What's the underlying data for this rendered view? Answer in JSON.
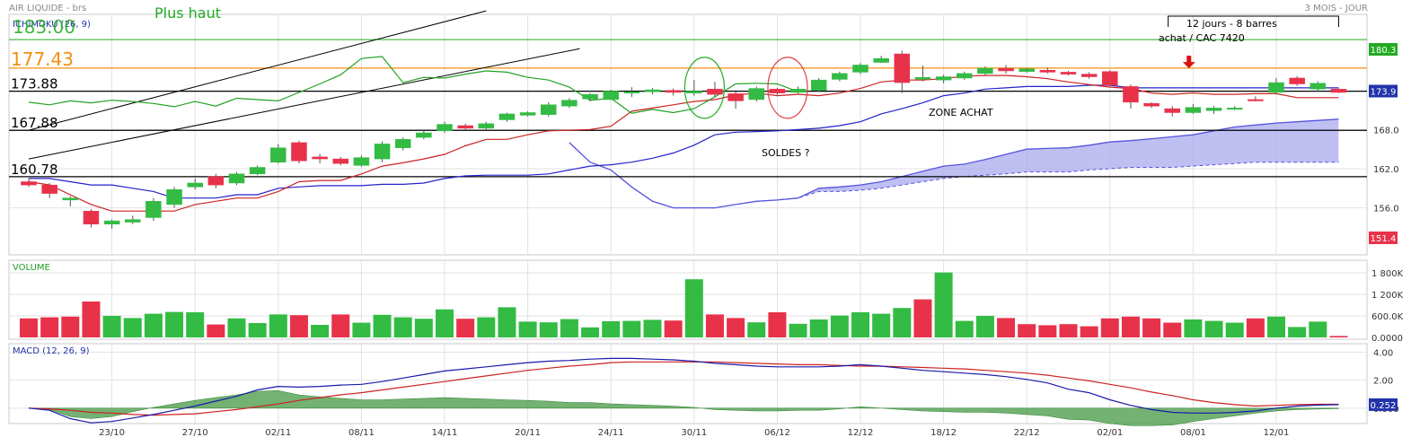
{
  "header": {
    "title": "AIR LIQUIDE - brs",
    "period": "3 MOIS - JOUR"
  },
  "colors": {
    "bull": "#33bb44",
    "bear": "#e8324a",
    "tenkan": "#cc2222",
    "kijun": "#2222cc",
    "chikou": "#22a022",
    "cloud_fill": "#aaaaee",
    "cloud_edge": "#5555dd",
    "level_orange": "#f09010",
    "level_green": "#22aa22",
    "macd_line": "#1a1aaa",
    "signal_line": "#cc2222",
    "histogram": "#5aa55a",
    "grid": "#e2e2e2"
  },
  "panels": {
    "price": {
      "label": "ICHIMOKU (26, 9)",
      "axis_ticks": [
        "168.0",
        "162.0",
        "156.0"
      ],
      "badges": [
        {
          "text": "180.3",
          "value": 180.3,
          "bg": "#22aa22"
        },
        {
          "text": "173.9",
          "value": 173.9,
          "bg": "#2233aa"
        },
        {
          "text": "151.4",
          "value": 151.4,
          "bg": "#e8324a"
        }
      ]
    },
    "volume": {
      "label": "VOLUME",
      "axis_ticks": [
        "1 800K",
        "1 200K",
        "600.0K",
        "0.0000"
      ]
    },
    "macd": {
      "label": "MACD (12, 26, 9)",
      "axis_ticks": [
        "4.00",
        "2.00",
        "0.000"
      ],
      "badge": {
        "text": "0.252",
        "value": 0.252,
        "bg": "#2233aa"
      }
    }
  },
  "x_axis": {
    "ticks": [
      {
        "label": "23/10",
        "i": 4
      },
      {
        "label": "27/10",
        "i": 8
      },
      {
        "label": "02/11",
        "i": 12
      },
      {
        "label": "08/11",
        "i": 16
      },
      {
        "label": "14/11",
        "i": 20
      },
      {
        "label": "20/11",
        "i": 24
      },
      {
        "label": "24/11",
        "i": 28
      },
      {
        "label": "30/11",
        "i": 32
      },
      {
        "label": "06/12",
        "i": 36
      },
      {
        "label": "12/12",
        "i": 40
      },
      {
        "label": "18/12",
        "i": 44
      },
      {
        "label": "22/12",
        "i": 48
      },
      {
        "label": "02/01",
        "i": 52
      },
      {
        "label": "08/01",
        "i": 56
      },
      {
        "label": "12/01",
        "i": 60
      }
    ]
  },
  "annotations": {
    "levels": [
      {
        "label": "177.43",
        "value": 177.43,
        "kind": "orange"
      },
      {
        "label": "173.88",
        "value": 173.88,
        "kind": "black"
      },
      {
        "label": "167.88",
        "value": 167.88,
        "kind": "black"
      },
      {
        "label": "160.78",
        "value": 160.78,
        "kind": "black"
      }
    ],
    "green_level": {
      "value": 181.8
    },
    "texts": {
      "plus_haut": "Plus haut",
      "overlap": "183.00",
      "measure": "12 jours - 8 barres",
      "achat": "achat / CAC 7420",
      "zone_achat": "ZONE ACHAT",
      "soldes": "SOLDES ?"
    },
    "trendlines": [
      {
        "from": {
          "i": 0,
          "v": 167.9
        },
        "to": {
          "i": 22,
          "v": 186.2
        }
      },
      {
        "from": {
          "i": 0,
          "v": 163.5
        },
        "to": {
          "i": 26.5,
          "v": 180.4
        }
      }
    ],
    "circles": [
      {
        "i": 32.5,
        "v": 174.4,
        "color": "#22aa22"
      },
      {
        "i": 36.5,
        "v": 174.4,
        "color": "#e04040"
      }
    ],
    "arrow": {
      "i": 55.8,
      "v": 177.4
    },
    "measure_span": {
      "from_i": 54.8,
      "to_i": 63.0
    }
  },
  "chart_data": [
    {
      "type": "candlestick",
      "title": "ICHIMOKU (26, 9)",
      "ylim": [
        151.4,
        180.3
      ],
      "candles": [
        {
          "o": 160.0,
          "h": 160.5,
          "l": 159.2,
          "c": 159.5
        },
        {
          "o": 159.5,
          "h": 159.8,
          "l": 157.5,
          "c": 158.2
        },
        {
          "o": 157.2,
          "h": 157.8,
          "l": 156.2,
          "c": 157.5
        },
        {
          "o": 155.5,
          "h": 155.8,
          "l": 153.0,
          "c": 153.5
        },
        {
          "o": 153.5,
          "h": 154.2,
          "l": 152.8,
          "c": 154.0
        },
        {
          "o": 153.8,
          "h": 154.8,
          "l": 153.5,
          "c": 154.2
        },
        {
          "o": 154.5,
          "h": 157.5,
          "l": 154.0,
          "c": 157.0
        },
        {
          "o": 156.5,
          "h": 159.2,
          "l": 156.0,
          "c": 158.8
        },
        {
          "o": 159.2,
          "h": 160.5,
          "l": 158.8,
          "c": 159.8
        },
        {
          "o": 160.8,
          "h": 161.2,
          "l": 159.0,
          "c": 159.5
        },
        {
          "o": 159.8,
          "h": 161.5,
          "l": 159.5,
          "c": 161.2
        },
        {
          "o": 161.2,
          "h": 162.5,
          "l": 161.0,
          "c": 162.2
        },
        {
          "o": 163.0,
          "h": 165.8,
          "l": 162.8,
          "c": 165.2
        },
        {
          "o": 166.0,
          "h": 166.3,
          "l": 162.8,
          "c": 163.2
        },
        {
          "o": 163.8,
          "h": 164.3,
          "l": 162.8,
          "c": 163.5
        },
        {
          "o": 163.5,
          "h": 163.8,
          "l": 162.5,
          "c": 162.8
        },
        {
          "o": 162.5,
          "h": 164.0,
          "l": 162.3,
          "c": 163.7
        },
        {
          "o": 163.5,
          "h": 166.2,
          "l": 163.0,
          "c": 165.8
        },
        {
          "o": 165.2,
          "h": 166.8,
          "l": 164.8,
          "c": 166.5
        },
        {
          "o": 166.8,
          "h": 167.8,
          "l": 166.5,
          "c": 167.5
        },
        {
          "o": 167.8,
          "h": 169.2,
          "l": 167.5,
          "c": 168.8
        },
        {
          "o": 168.6,
          "h": 168.9,
          "l": 168.0,
          "c": 168.2
        },
        {
          "o": 168.2,
          "h": 169.2,
          "l": 168.0,
          "c": 168.9
        },
        {
          "o": 169.5,
          "h": 170.6,
          "l": 169.2,
          "c": 170.4
        },
        {
          "o": 170.2,
          "h": 170.8,
          "l": 170.0,
          "c": 170.6
        },
        {
          "o": 170.3,
          "h": 172.2,
          "l": 170.0,
          "c": 171.8
        },
        {
          "o": 171.6,
          "h": 172.8,
          "l": 171.3,
          "c": 172.5
        },
        {
          "o": 172.7,
          "h": 173.6,
          "l": 172.3,
          "c": 173.4
        },
        {
          "o": 172.6,
          "h": 174.1,
          "l": 172.5,
          "c": 173.9
        },
        {
          "o": 173.6,
          "h": 174.5,
          "l": 173.0,
          "c": 173.8
        },
        {
          "o": 173.8,
          "h": 174.4,
          "l": 173.4,
          "c": 174.1
        },
        {
          "o": 174.0,
          "h": 174.3,
          "l": 173.2,
          "c": 173.7
        },
        {
          "o": 173.6,
          "h": 175.6,
          "l": 173.2,
          "c": 173.9
        },
        {
          "o": 174.2,
          "h": 175.3,
          "l": 173.0,
          "c": 173.4
        },
        {
          "o": 173.5,
          "h": 173.8,
          "l": 171.2,
          "c": 172.4
        },
        {
          "o": 172.6,
          "h": 174.6,
          "l": 172.3,
          "c": 174.3
        },
        {
          "o": 174.2,
          "h": 174.4,
          "l": 173.2,
          "c": 173.6
        },
        {
          "o": 173.7,
          "h": 174.6,
          "l": 173.5,
          "c": 174.2
        },
        {
          "o": 174.0,
          "h": 175.9,
          "l": 173.8,
          "c": 175.6
        },
        {
          "o": 175.7,
          "h": 176.9,
          "l": 175.4,
          "c": 176.6
        },
        {
          "o": 176.8,
          "h": 178.2,
          "l": 176.5,
          "c": 177.9
        },
        {
          "o": 178.3,
          "h": 179.3,
          "l": 178.2,
          "c": 178.9
        },
        {
          "o": 179.6,
          "h": 180.1,
          "l": 173.6,
          "c": 175.2
        },
        {
          "o": 175.7,
          "h": 177.8,
          "l": 175.4,
          "c": 176.0
        },
        {
          "o": 175.6,
          "h": 176.4,
          "l": 175.1,
          "c": 176.1
        },
        {
          "o": 175.9,
          "h": 176.9,
          "l": 175.6,
          "c": 176.6
        },
        {
          "o": 176.6,
          "h": 177.7,
          "l": 176.4,
          "c": 177.4
        },
        {
          "o": 177.4,
          "h": 177.9,
          "l": 176.6,
          "c": 177.0
        },
        {
          "o": 176.9,
          "h": 177.5,
          "l": 176.7,
          "c": 177.3
        },
        {
          "o": 177.1,
          "h": 177.5,
          "l": 176.6,
          "c": 176.8
        },
        {
          "o": 176.8,
          "h": 177.0,
          "l": 176.3,
          "c": 176.5
        },
        {
          "o": 176.5,
          "h": 176.8,
          "l": 175.8,
          "c": 176.1
        },
        {
          "o": 176.9,
          "h": 177.1,
          "l": 174.6,
          "c": 174.8
        },
        {
          "o": 174.6,
          "h": 174.9,
          "l": 171.2,
          "c": 172.2
        },
        {
          "o": 172.0,
          "h": 172.2,
          "l": 171.3,
          "c": 171.6
        },
        {
          "o": 171.2,
          "h": 171.6,
          "l": 170.0,
          "c": 170.6
        },
        {
          "o": 170.6,
          "h": 171.9,
          "l": 170.4,
          "c": 171.4
        },
        {
          "o": 170.9,
          "h": 171.6,
          "l": 170.4,
          "c": 171.3
        },
        {
          "o": 171.3,
          "h": 171.6,
          "l": 171.0,
          "c": 171.3
        },
        {
          "o": 172.6,
          "h": 173.1,
          "l": 172.3,
          "c": 172.4
        },
        {
          "o": 173.7,
          "h": 175.9,
          "l": 173.4,
          "c": 175.2
        },
        {
          "o": 175.9,
          "h": 176.2,
          "l": 174.7,
          "c": 175.0
        },
        {
          "o": 174.2,
          "h": 175.4,
          "l": 173.8,
          "c": 175.1
        },
        {
          "o": 174.2,
          "h": 174.3,
          "l": 173.6,
          "c": 173.7
        }
      ],
      "tenkan": {
        "name": "tenkan",
        "start": 0,
        "values": [
          160.0,
          159.5,
          158.0,
          156.5,
          155.5,
          155.5,
          155.5,
          155.5,
          156.5,
          157.0,
          157.5,
          157.5,
          158.5,
          160.0,
          160.2,
          160.2,
          161.2,
          162.4,
          162.9,
          163.5,
          164.2,
          165.5,
          166.5,
          166.5,
          167.2,
          167.8,
          167.9,
          168.0,
          168.5,
          170.8,
          171.3,
          171.8,
          172.3,
          172.6,
          173.3,
          173.6,
          173.2,
          173.4,
          173.2,
          173.6,
          174.3,
          175.3,
          175.6,
          175.6,
          175.8,
          176.2,
          176.3,
          176.3,
          176.1,
          175.8,
          175.3,
          174.9,
          174.5,
          174.3,
          173.6,
          173.4,
          173.6,
          173.4,
          173.4,
          173.5,
          173.5,
          172.9,
          172.9,
          172.9
        ]
      },
      "kijun": {
        "name": "kijun",
        "start": 0,
        "values": [
          160.5,
          160.5,
          160.0,
          159.5,
          159.5,
          159.0,
          158.5,
          157.5,
          157.5,
          157.5,
          158.0,
          158.0,
          159.0,
          159.2,
          159.4,
          159.4,
          159.4,
          159.6,
          159.6,
          159.8,
          160.5,
          160.9,
          161.0,
          161.0,
          161.0,
          161.2,
          161.8,
          162.4,
          162.6,
          163.0,
          163.6,
          164.4,
          165.6,
          167.2,
          167.6,
          167.7,
          167.8,
          168.0,
          168.2,
          168.6,
          169.2,
          170.4,
          171.2,
          172.1,
          173.2,
          173.6,
          174.2,
          174.4,
          174.6,
          174.6,
          174.6,
          174.8,
          174.8,
          174.4,
          174.4,
          174.4,
          174.4,
          174.4,
          174.4,
          174.4,
          174.4,
          174.4,
          174.4,
          174.4
        ]
      },
      "chikou": {
        "name": "chikou",
        "start": 0,
        "values": [
          172.2,
          171.8,
          172.4,
          172.1,
          172.5,
          172.3,
          172.0,
          171.5,
          172.3,
          171.6,
          172.8,
          172.6,
          172.4,
          173.7,
          175.0,
          176.4,
          178.9,
          179.2,
          175.2,
          176.0,
          175.9,
          176.5,
          177.0,
          176.8,
          176.0,
          175.6,
          174.5,
          172.5,
          172.8,
          170.5,
          171.1,
          170.6,
          171.2,
          173.0,
          175.0,
          175.1,
          175.0,
          173.8
        ]
      },
      "ssa": {
        "name": "senkou A",
        "start": 26,
        "values": [
          166.0,
          163.0,
          161.8,
          159.2,
          157.0,
          156.0,
          156.0,
          156.0,
          156.5,
          157.0,
          157.2,
          157.5,
          159.0,
          159.2,
          159.5,
          160.0,
          160.8,
          161.6,
          162.4,
          162.7,
          163.4,
          164.2,
          165.0,
          165.1,
          165.2,
          165.6,
          166.1,
          166.3,
          166.6,
          166.9,
          167.2,
          167.8,
          168.4,
          168.7,
          169.0,
          169.2,
          169.4,
          169.6
        ]
      },
      "ssb": {
        "name": "senkou B",
        "start": 26,
        "values": [
          166.0,
          163.0,
          161.8,
          159.2,
          157.0,
          156.0,
          156.0,
          156.0,
          156.5,
          157.0,
          157.2,
          157.5,
          158.5,
          158.5,
          158.7,
          159.0,
          159.5,
          160.0,
          160.5,
          160.8,
          161.0,
          161.2,
          161.5,
          161.5,
          161.5,
          161.8,
          162.0,
          162.2,
          162.2,
          162.2,
          162.4,
          162.6,
          162.8,
          163.0,
          163.0,
          163.0,
          163.0,
          163.0
        ]
      }
    },
    {
      "type": "bar",
      "title": "VOLUME",
      "ylim": [
        0,
        2000000
      ],
      "values": [
        530000,
        560000,
        580000,
        1000000,
        600000,
        540000,
        660000,
        710000,
        700000,
        360000,
        530000,
        400000,
        640000,
        620000,
        350000,
        640000,
        410000,
        630000,
        560000,
        520000,
        780000,
        520000,
        560000,
        840000,
        440000,
        420000,
        510000,
        280000,
        450000,
        460000,
        490000,
        470000,
        1620000,
        640000,
        540000,
        420000,
        700000,
        380000,
        500000,
        610000,
        700000,
        660000,
        820000,
        1060000,
        1810000,
        460000,
        600000,
        540000,
        370000,
        340000,
        370000,
        310000,
        530000,
        580000,
        530000,
        410000,
        500000,
        460000,
        410000,
        530000,
        580000,
        290000,
        440000,
        40000
      ],
      "bull": [
        0,
        0,
        0,
        0,
        1,
        1,
        1,
        1,
        1,
        0,
        1,
        1,
        1,
        0,
        1,
        0,
        1,
        1,
        1,
        1,
        1,
        0,
        1,
        1,
        1,
        1,
        1,
        1,
        1,
        1,
        1,
        0,
        1,
        0,
        0,
        1,
        0,
        1,
        1,
        1,
        1,
        1,
        1,
        0,
        1,
        1,
        1,
        0,
        0,
        0,
        0,
        0,
        0,
        0,
        0,
        0,
        1,
        1,
        1,
        0,
        1,
        1,
        1,
        0
      ]
    },
    {
      "type": "line",
      "title": "MACD (12, 26, 9)",
      "ylim": [
        -1.1,
        4.6
      ],
      "series": [
        {
          "name": "MACD",
          "values": [
            0.0,
            -0.15,
            -0.75,
            -1.05,
            -0.95,
            -0.7,
            -0.45,
            -0.15,
            0.15,
            0.5,
            0.85,
            1.3,
            1.55,
            1.5,
            1.55,
            1.65,
            1.7,
            1.9,
            2.15,
            2.4,
            2.65,
            2.8,
            2.95,
            3.1,
            3.25,
            3.35,
            3.4,
            3.5,
            3.55,
            3.55,
            3.5,
            3.45,
            3.35,
            3.2,
            3.1,
            3.0,
            2.95,
            2.95,
            2.95,
            3.0,
            3.1,
            3.0,
            2.85,
            2.7,
            2.6,
            2.5,
            2.4,
            2.25,
            2.05,
            1.8,
            1.35,
            1.1,
            0.6,
            0.2,
            -0.1,
            -0.3,
            -0.35,
            -0.35,
            -0.3,
            -0.2,
            0.0,
            0.15,
            0.22,
            0.25
          ]
        },
        {
          "name": "Signal",
          "values": [
            0.0,
            -0.05,
            -0.15,
            -0.3,
            -0.35,
            -0.45,
            -0.5,
            -0.45,
            -0.4,
            -0.25,
            -0.1,
            0.1,
            0.3,
            0.55,
            0.75,
            0.95,
            1.1,
            1.3,
            1.5,
            1.7,
            1.9,
            2.1,
            2.3,
            2.5,
            2.7,
            2.85,
            3.0,
            3.1,
            3.25,
            3.3,
            3.3,
            3.3,
            3.3,
            3.3,
            3.25,
            3.2,
            3.15,
            3.1,
            3.1,
            3.05,
            3.0,
            3.0,
            2.95,
            2.9,
            2.85,
            2.8,
            2.7,
            2.6,
            2.5,
            2.35,
            2.15,
            1.95,
            1.7,
            1.45,
            1.15,
            0.9,
            0.6,
            0.4,
            0.25,
            0.15,
            0.2,
            0.25,
            0.28,
            0.28
          ]
        }
      ]
    }
  ]
}
